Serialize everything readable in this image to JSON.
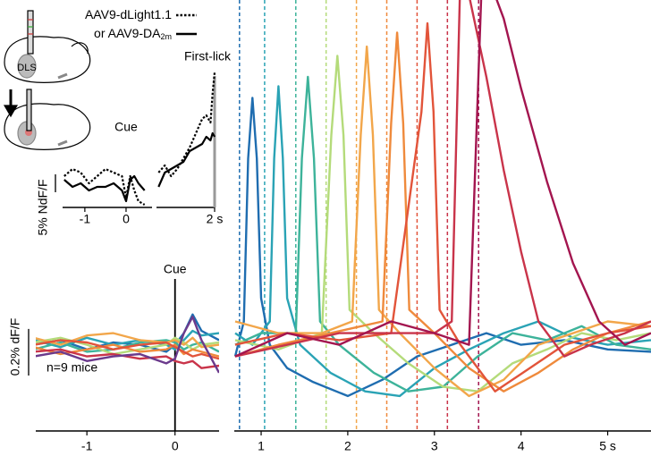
{
  "inset": {
    "region": "DLS"
  },
  "chart_data": [
    {
      "type": "line",
      "annotation": "Cue",
      "xlim": [
        -1.54,
        0.63
      ],
      "ylim": [
        -6.75,
        32.5
      ],
      "xticks": [
        -1,
        0
      ],
      "scale_bar": {
        "value": 5,
        "label": "5% NdF/F"
      },
      "x": [
        -1.5,
        -1.3,
        -1.1,
        -0.9,
        -0.7,
        -0.5,
        -0.3,
        -0.1,
        0,
        0.1,
        0.2,
        0.3,
        0.45
      ],
      "series": [
        {
          "name": "AAV9-dLight1.1",
          "style": "dotted",
          "color": "#000000",
          "values": [
            2,
            4,
            3,
            0,
            2,
            4,
            3,
            2,
            -4,
            2,
            -2,
            -5,
            -6
          ]
        },
        {
          "name": "or AAV9-DA",
          "name_subscript": "2m",
          "style": "solid",
          "color": "#000000",
          "values": [
            1,
            -1,
            0,
            -2,
            -1,
            -1,
            0,
            -2,
            -5,
            1,
            2,
            0,
            -2
          ]
        }
      ]
    },
    {
      "type": "line",
      "annotation": "First-lick",
      "xlim": [
        0.6,
        2.0
      ],
      "ylim": [
        -6.75,
        32.5
      ],
      "xticks": [
        {
          "value": 2,
          "label": "2 s"
        }
      ],
      "marker_x": 2,
      "x": [
        0.65,
        0.8,
        0.95,
        1.1,
        1.25,
        1.4,
        1.55,
        1.7,
        1.8,
        1.9,
        1.95,
        2.0
      ],
      "series": [
        {
          "style": "dotted",
          "color": "#000000",
          "values": [
            3,
            5,
            2,
            4,
            7,
            10,
            14,
            18,
            19,
            17,
            25,
            31
          ]
        },
        {
          "style": "solid",
          "color": "#000000",
          "values": [
            -1,
            3,
            4,
            5,
            6,
            9,
            10,
            11,
            13,
            12,
            14,
            13
          ]
        }
      ]
    },
    {
      "type": "line",
      "annotation": "Cue",
      "note": "n=9 mice",
      "xlim": [
        -1.58,
        0.5
      ],
      "ylim": [
        -0.37,
        1.48
      ],
      "xticks": [
        -1,
        0
      ],
      "marker_x": 0,
      "scale_bar": {
        "value": 0.2,
        "label": "0.2% dF/F"
      },
      "x": [
        -1.6,
        -1.3,
        -1.0,
        -0.7,
        -0.4,
        -0.1,
        0,
        0.1,
        0.2,
        0.3,
        0.5
      ],
      "series": [
        {
          "color": "#1f6db0",
          "values": [
            0.0,
            0.02,
            -0.02,
            0.01,
            0.0,
            -0.03,
            0.0,
            0.05,
            0.13,
            0.06,
            0.02
          ]
        },
        {
          "color": "#2aa3b5",
          "values": [
            0.02,
            -0.01,
            0.03,
            0.0,
            0.02,
            0.0,
            -0.02,
            0.02,
            0.06,
            0.04,
            0.05
          ]
        },
        {
          "color": "#3db39a",
          "values": [
            -0.02,
            0.01,
            -0.03,
            -0.02,
            0.01,
            0.02,
            0.01,
            -0.02,
            0.0,
            0.01,
            -0.03
          ]
        },
        {
          "color": "#b4db7a",
          "values": [
            0.01,
            0.03,
            0.0,
            -0.04,
            -0.02,
            0.0,
            0.03,
            0.01,
            -0.02,
            0.0,
            0.01
          ]
        },
        {
          "color": "#f2a64a",
          "values": [
            0.03,
            0.0,
            0.04,
            0.05,
            0.02,
            0.01,
            0.02,
            0.0,
            0.03,
            -0.01,
            0.0
          ]
        },
        {
          "color": "#ef8a3c",
          "values": [
            -0.01,
            -0.04,
            -0.02,
            0.0,
            -0.03,
            -0.02,
            0.0,
            -0.04,
            -0.02,
            -0.03,
            -0.05
          ]
        },
        {
          "color": "#e2543a",
          "values": [
            0.0,
            0.02,
            0.01,
            -0.02,
            0.0,
            0.01,
            -0.01,
            -0.03,
            -0.05,
            -0.04,
            -0.06
          ]
        },
        {
          "color": "#c9344a",
          "values": [
            -0.03,
            -0.02,
            -0.05,
            -0.04,
            -0.06,
            -0.05,
            -0.07,
            -0.08,
            -0.07,
            -0.1,
            -0.09
          ]
        },
        {
          "color": "#6b3a8c",
          "values": [
            -0.05,
            -0.03,
            -0.07,
            -0.05,
            -0.04,
            -0.08,
            -0.06,
            0.05,
            0.12,
            0.02,
            -0.12
          ]
        }
      ]
    },
    {
      "type": "line",
      "xlim": [
        0.69,
        5.5
      ],
      "ylim": [
        -0.37,
        1.48
      ],
      "xticks": [
        1,
        2,
        3,
        4,
        {
          "value": 5,
          "label": "5 s"
        }
      ],
      "events": [
        0.75,
        1.04,
        1.4,
        1.75,
        2.1,
        2.45,
        2.8,
        3.15,
        3.51
      ],
      "series": [
        {
          "color": "#1f6db0",
          "x": [
            0.7,
            0.8,
            0.85,
            0.9,
            0.95,
            1.0,
            1.1,
            1.3,
            1.6,
            2.0,
            2.4,
            2.8,
            3.2,
            3.6,
            4.0,
            4.5,
            5.0,
            5.5
          ],
          "values": [
            -0.05,
            0.1,
            0.8,
            1.06,
            0.8,
            0.2,
            0.0,
            -0.1,
            -0.16,
            -0.22,
            -0.15,
            -0.05,
            0.0,
            0.05,
            0.0,
            0.02,
            -0.02,
            -0.03
          ]
        },
        {
          "color": "#2aa3b5",
          "x": [
            0.7,
            0.9,
            1.1,
            1.15,
            1.2,
            1.25,
            1.3,
            1.45,
            1.8,
            2.2,
            2.6,
            3.0,
            3.4,
            3.8,
            4.2,
            4.6,
            5.0,
            5.5
          ],
          "values": [
            0.05,
            0.0,
            0.1,
            0.8,
            1.11,
            0.8,
            0.2,
            0.0,
            -0.12,
            -0.2,
            -0.22,
            -0.1,
            -0.02,
            0.05,
            0.1,
            0.03,
            0.0,
            0.02
          ]
        },
        {
          "color": "#3db39a",
          "x": [
            0.7,
            1.0,
            1.4,
            1.47,
            1.54,
            1.61,
            1.68,
            1.9,
            2.3,
            2.7,
            3.1,
            3.5,
            3.9,
            4.3,
            4.7,
            5.1,
            5.5
          ],
          "values": [
            0.0,
            0.05,
            0.05,
            0.8,
            1.15,
            0.8,
            0.1,
            0.0,
            -0.12,
            -0.2,
            -0.18,
            -0.05,
            0.05,
            0.02,
            0.08,
            0.0,
            -0.02
          ]
        },
        {
          "color": "#b4db7a",
          "x": [
            0.7,
            1.2,
            1.7,
            1.81,
            1.88,
            1.95,
            2.02,
            2.3,
            2.7,
            3.1,
            3.5,
            3.9,
            4.3,
            4.7,
            5.1,
            5.5
          ],
          "values": [
            0.02,
            -0.02,
            0.05,
            0.9,
            1.24,
            0.9,
            0.15,
            0.05,
            -0.08,
            -0.18,
            -0.2,
            -0.08,
            -0.02,
            0.05,
            0.02,
            0.05
          ]
        },
        {
          "color": "#f2a64a",
          "x": [
            0.7,
            1.2,
            1.7,
            2.05,
            2.15,
            2.22,
            2.29,
            2.36,
            2.6,
            3.0,
            3.4,
            3.8,
            4.2,
            4.6,
            5.0,
            5.5
          ],
          "values": [
            0.1,
            0.05,
            0.05,
            0.1,
            0.9,
            1.28,
            0.9,
            0.15,
            0.05,
            -0.1,
            -0.22,
            -0.15,
            0.0,
            0.05,
            0.1,
            0.08
          ]
        },
        {
          "color": "#ef8a3c",
          "x": [
            0.7,
            1.2,
            1.8,
            2.4,
            2.5,
            2.57,
            2.64,
            2.71,
            3.0,
            3.4,
            3.8,
            4.2,
            4.6,
            5.0,
            5.5
          ],
          "values": [
            -0.05,
            0.0,
            0.05,
            0.1,
            0.95,
            1.34,
            0.95,
            0.15,
            0.05,
            -0.1,
            -0.2,
            -0.12,
            -0.02,
            0.05,
            0.1
          ]
        },
        {
          "color": "#e2543a",
          "x": [
            0.7,
            1.3,
            1.9,
            2.5,
            2.85,
            2.92,
            2.99,
            3.06,
            3.3,
            3.7,
            4.1,
            4.5,
            5.0,
            5.5
          ],
          "values": [
            0.0,
            0.05,
            0.02,
            0.05,
            1.0,
            1.38,
            1.0,
            0.15,
            0.0,
            -0.2,
            -0.1,
            0.0,
            0.05,
            0.08
          ]
        },
        {
          "color": "#c9344a",
          "x": [
            0.7,
            1.3,
            1.9,
            2.5,
            3.0,
            3.2,
            3.3,
            3.4,
            3.6,
            3.8,
            4.0,
            4.2,
            4.5,
            4.8,
            5.2,
            5.5
          ],
          "values": [
            -0.05,
            0.0,
            0.05,
            0.05,
            0.05,
            0.1,
            1.6,
            1.5,
            1.15,
            0.75,
            0.4,
            0.1,
            -0.05,
            0.0,
            0.05,
            0.1
          ]
        },
        {
          "color": "#a3154f",
          "x": [
            0.7,
            1.3,
            1.9,
            2.5,
            3.0,
            3.4,
            3.55,
            3.65,
            3.8,
            4.0,
            4.3,
            4.6,
            4.9,
            5.2,
            5.5
          ],
          "values": [
            -0.05,
            0.05,
            0.0,
            0.1,
            0.05,
            0.0,
            1.6,
            1.55,
            1.4,
            1.1,
            0.7,
            0.35,
            0.1,
            0.0,
            0.05
          ]
        }
      ]
    }
  ]
}
